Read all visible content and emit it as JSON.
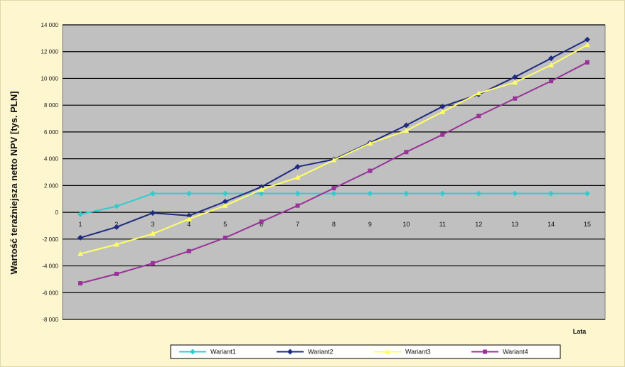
{
  "chart_data": {
    "type": "line",
    "xlabel": "Lata",
    "ylabel": "Wartość teraźniejsza netto NPV [tys. PLN]",
    "categories": [
      "1",
      "2",
      "3",
      "4",
      "5",
      "6",
      "7",
      "8",
      "9",
      "10",
      "11",
      "12",
      "13",
      "14",
      "15"
    ],
    "ylim": [
      -8000,
      14000
    ],
    "yticks": [
      14000,
      12000,
      10000,
      8000,
      6000,
      4000,
      2000,
      0,
      -2000,
      -4000,
      -6000,
      -8000
    ],
    "ytick_labels": [
      "14 000",
      "12 000",
      "10 000",
      "8 000",
      "6 000",
      "4 000",
      "2 000",
      "0",
      "-2 000",
      "-4 000",
      "-6 000",
      "-8 000"
    ],
    "grid": true,
    "legend_position": "bottom",
    "plot_background": "#c0c0c0",
    "series": [
      {
        "name": "Wariant1",
        "color": "#33cccc",
        "marker": "diamond",
        "values": [
          -150,
          450,
          1400,
          1400,
          1400,
          1400,
          1400,
          1400,
          1400,
          1400,
          1400,
          1400,
          1400,
          1400,
          1400
        ]
      },
      {
        "name": "Wariant2",
        "color": "#1f2a80",
        "marker": "diamond",
        "values": [
          -1900,
          -1100,
          -50,
          -250,
          800,
          1900,
          3400,
          3950,
          5200,
          6500,
          7900,
          8800,
          10100,
          11500,
          12900
        ]
      },
      {
        "name": "Wariant3",
        "color": "#ffff66",
        "marker": "triangle",
        "values": [
          -3100,
          -2400,
          -1600,
          -500,
          500,
          1700,
          2600,
          3900,
          5150,
          6100,
          7500,
          8900,
          9700,
          11000,
          12500
        ]
      },
      {
        "name": "Wariant4",
        "color": "#993399",
        "marker": "square",
        "values": [
          -5300,
          -4600,
          -3800,
          -2900,
          -1900,
          -700,
          500,
          1800,
          3100,
          4500,
          5800,
          7200,
          8500,
          9800,
          11200
        ]
      }
    ]
  }
}
